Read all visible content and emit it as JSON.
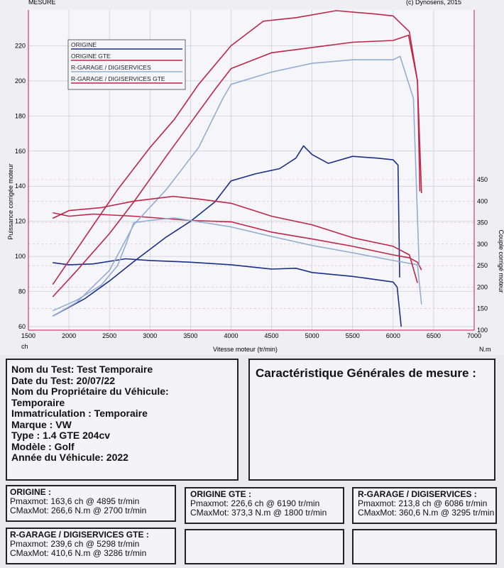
{
  "header": {
    "left_label": "MESURE",
    "copyright": "(c) Dynosens, 2015"
  },
  "chart_data": {
    "type": "line",
    "xlabel": "Vitesse moteur (tr/min)",
    "ylabel_left": "Puissance corrigée moteur",
    "ylabel_right": "Couple corrigé moteur",
    "x_unit_left": "ch",
    "x_unit_right": "N.m",
    "xlim": [
      1500,
      7000
    ],
    "ylim_left": [
      60,
      240
    ],
    "ylim_right": [
      100,
      450
    ],
    "x_ticks": [
      1500,
      2000,
      2500,
      3000,
      3500,
      4000,
      4500,
      5000,
      5500,
      6000,
      6500,
      7000
    ],
    "y_ticks_left": [
      60,
      80,
      100,
      120,
      140,
      160,
      180,
      200,
      220
    ],
    "y_ticks_right": [
      100,
      150,
      200,
      250,
      300,
      350,
      400,
      450
    ],
    "grid": true,
    "legend_position": "top-left",
    "series": [
      {
        "name": "ORIGINE",
        "color": "#1c2f86",
        "axis": "left",
        "kind": "power",
        "points": [
          [
            1800,
            66
          ],
          [
            2200,
            76
          ],
          [
            2500,
            86
          ],
          [
            2800,
            97
          ],
          [
            3200,
            111
          ],
          [
            3500,
            120
          ],
          [
            3800,
            131
          ],
          [
            4000,
            143
          ],
          [
            4300,
            147
          ],
          [
            4600,
            150
          ],
          [
            4800,
            156
          ],
          [
            4895,
            163
          ],
          [
            5000,
            158
          ],
          [
            5200,
            153
          ],
          [
            5500,
            157
          ],
          [
            5800,
            156
          ],
          [
            6000,
            155
          ],
          [
            6060,
            152
          ],
          [
            6080,
            88
          ]
        ]
      },
      {
        "name": "ORIGINE",
        "color": "#1c2f86",
        "axis": "right",
        "kind": "torque",
        "points": [
          [
            1800,
            257
          ],
          [
            2000,
            252
          ],
          [
            2300,
            254
          ],
          [
            2700,
            266
          ],
          [
            3000,
            262
          ],
          [
            3500,
            258
          ],
          [
            4000,
            252
          ],
          [
            4500,
            242
          ],
          [
            4800,
            244
          ],
          [
            5000,
            234
          ],
          [
            5500,
            225
          ],
          [
            6000,
            212
          ],
          [
            6050,
            200
          ],
          [
            6100,
            108
          ]
        ]
      },
      {
        "name": "ORIGINE GTE",
        "color": "#bd2747",
        "axis": "left",
        "kind": "power",
        "points": [
          [
            1800,
            77
          ],
          [
            2100,
            92
          ],
          [
            2500,
            113
          ],
          [
            2800,
            131
          ],
          [
            3200,
            157
          ],
          [
            3500,
            176
          ],
          [
            3800,
            195
          ],
          [
            4000,
            207
          ],
          [
            4500,
            216
          ],
          [
            5000,
            219
          ],
          [
            5500,
            222
          ],
          [
            6000,
            223
          ],
          [
            6190,
            226
          ],
          [
            6300,
            200
          ],
          [
            6350,
            136
          ]
        ]
      },
      {
        "name": "ORIGINE GTE",
        "color": "#bd2747",
        "axis": "right",
        "kind": "torque",
        "points": [
          [
            1800,
            373
          ],
          [
            2000,
            365
          ],
          [
            2300,
            370
          ],
          [
            2800,
            365
          ],
          [
            3500,
            355
          ],
          [
            4000,
            352
          ],
          [
            4500,
            328
          ],
          [
            5000,
            312
          ],
          [
            5500,
            295
          ],
          [
            6000,
            275
          ],
          [
            6200,
            268
          ],
          [
            6300,
            258
          ],
          [
            6350,
            240
          ]
        ]
      },
      {
        "name": "R-GARAGE / DIGISERVICES",
        "color": "#93add2",
        "axis": "left",
        "kind": "power",
        "points": [
          [
            1800,
            66
          ],
          [
            2100,
            74
          ],
          [
            2500,
            92
          ],
          [
            2800,
            118
          ],
          [
            3200,
            138
          ],
          [
            3600,
            162
          ],
          [
            3900,
            190
          ],
          [
            4000,
            198
          ],
          [
            4500,
            205
          ],
          [
            5000,
            210
          ],
          [
            5500,
            212
          ],
          [
            6000,
            212
          ],
          [
            6086,
            214
          ],
          [
            6250,
            190
          ],
          [
            6320,
            95
          ]
        ]
      },
      {
        "name": "R-GARAGE / DIGISERVICES",
        "color": "#93add2",
        "axis": "right",
        "kind": "torque",
        "points": [
          [
            1800,
            145
          ],
          [
            2100,
            170
          ],
          [
            2400,
            205
          ],
          [
            2600,
            250
          ],
          [
            2700,
            298
          ],
          [
            2800,
            350
          ],
          [
            3000,
            355
          ],
          [
            3295,
            361
          ],
          [
            3500,
            355
          ],
          [
            4000,
            340
          ],
          [
            4500,
            318
          ],
          [
            5000,
            297
          ],
          [
            5500,
            280
          ],
          [
            6000,
            262
          ],
          [
            6300,
            252
          ],
          [
            6350,
            160
          ]
        ]
      },
      {
        "name": "R-GARAGE / DIGISERVICES GTE",
        "color": "#bd2747",
        "axis": "left",
        "kind": "power",
        "points": [
          [
            1800,
            84
          ],
          [
            2200,
            111
          ],
          [
            2600,
            138
          ],
          [
            3000,
            162
          ],
          [
            3300,
            178
          ],
          [
            3600,
            198
          ],
          [
            4000,
            220
          ],
          [
            4400,
            234
          ],
          [
            4800,
            236
          ],
          [
            5298,
            240
          ],
          [
            5800,
            238
          ],
          [
            6000,
            237
          ],
          [
            6200,
            228
          ],
          [
            6300,
            200
          ],
          [
            6330,
            137
          ]
        ]
      },
      {
        "name": "R-GARAGE / DIGISERVICES GTE",
        "color": "#bd2747",
        "axis": "right",
        "kind": "torque",
        "points": [
          [
            1800,
            360
          ],
          [
            2000,
            378
          ],
          [
            2400,
            385
          ],
          [
            2800,
            400
          ],
          [
            3286,
            411
          ],
          [
            3600,
            405
          ],
          [
            4000,
            395
          ],
          [
            4500,
            365
          ],
          [
            5000,
            345
          ],
          [
            5500,
            315
          ],
          [
            6000,
            295
          ],
          [
            6200,
            275
          ],
          [
            6300,
            210
          ]
        ]
      }
    ]
  },
  "info": {
    "nom_test": "Nom du Test: Test Temporaire",
    "date_test": "Date du Test: 20/07/22",
    "proprietaire_label": "Nom du Propriétaire du Véhicule:",
    "proprietaire_value": "Temporaire",
    "immatriculation": "Immatriculation  : Temporaire",
    "marque": "Marque  : VW",
    "type": "Type  : 1.4 GTE 204cv",
    "modele": "Modèle  : Golf",
    "annee": "Année du Véhicule: 2022"
  },
  "caracteristiques": {
    "title": "Caractéristique Générales de mesure :"
  },
  "results": [
    {
      "title": "ORIGINE :",
      "pmax": "Pmaxmot: 163,6 ch @ 4895 tr/min",
      "cmax": "CMaxMot: 266,6 N.m @ 2700 tr/min"
    },
    {
      "title": "ORIGINE GTE :",
      "pmax": "Pmaxmot: 226,6 ch @ 6190 tr/min",
      "cmax": "CMaxMot: 373,3 N.m @ 1800 tr/min"
    },
    {
      "title": "R-GARAGE / DIGISERVICES  :",
      "pmax": "Pmaxmot: 213,8 ch @ 6086 tr/min",
      "cmax": "CMaxMot: 360,6 N.m @ 3295 tr/min"
    },
    {
      "title": "R-GARAGE / DIGISERVICES  GTE :",
      "pmax": "Pmaxmot: 239,6 ch @ 5298 tr/min",
      "cmax": "CMaxMot: 410,6 N.m @ 3286 tr/min"
    }
  ]
}
